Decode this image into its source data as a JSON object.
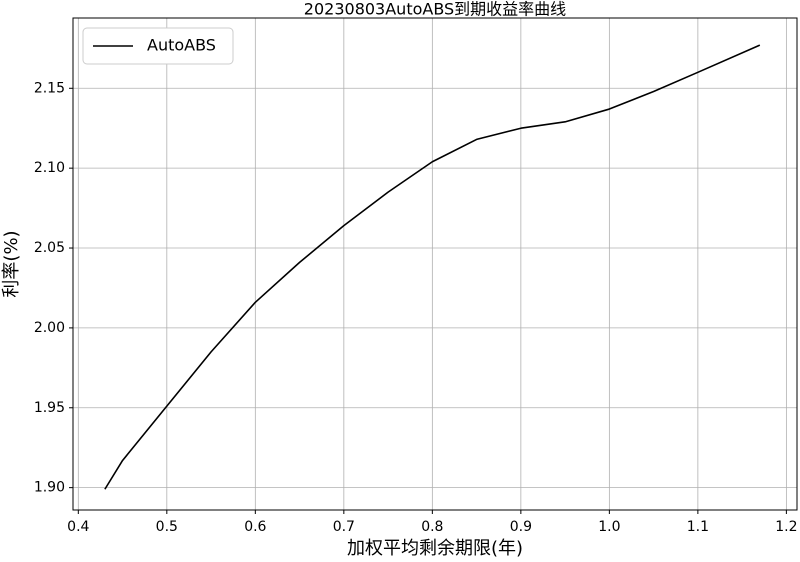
{
  "chart_data": {
    "type": "line",
    "title": "20230803AutoABS到期收益率曲线",
    "xlabel": "加权平均剩余期限(年)",
    "ylabel": "利率(%)",
    "x": [
      0.43,
      0.45,
      0.5,
      0.55,
      0.6,
      0.65,
      0.7,
      0.75,
      0.8,
      0.85,
      0.9,
      0.95,
      1.0,
      1.05,
      1.1,
      1.17
    ],
    "series": [
      {
        "name": "AutoABS",
        "color": "#000000",
        "values": [
          1.899,
          1.917,
          1.951,
          1.985,
          2.016,
          2.041,
          2.064,
          2.085,
          2.104,
          2.118,
          2.125,
          2.129,
          2.137,
          2.148,
          2.16,
          2.177
        ]
      }
    ],
    "xlim": [
      0.394,
      1.212
    ],
    "ylim": [
      1.886,
      2.194
    ],
    "xticks": [
      0.4,
      0.5,
      0.6,
      0.7,
      0.8,
      0.9,
      {
        "value": 1.0,
        "label": "1.0"
      },
      1.1,
      1.2
    ],
    "yticks": [
      {
        "value": 1.9,
        "label": "1.90"
      },
      1.95,
      {
        "value": 2.0,
        "label": "2.00"
      },
      2.05,
      {
        "value": 2.1,
        "label": "2.10"
      },
      2.15
    ],
    "grid": true,
    "legend": "upper-left"
  }
}
